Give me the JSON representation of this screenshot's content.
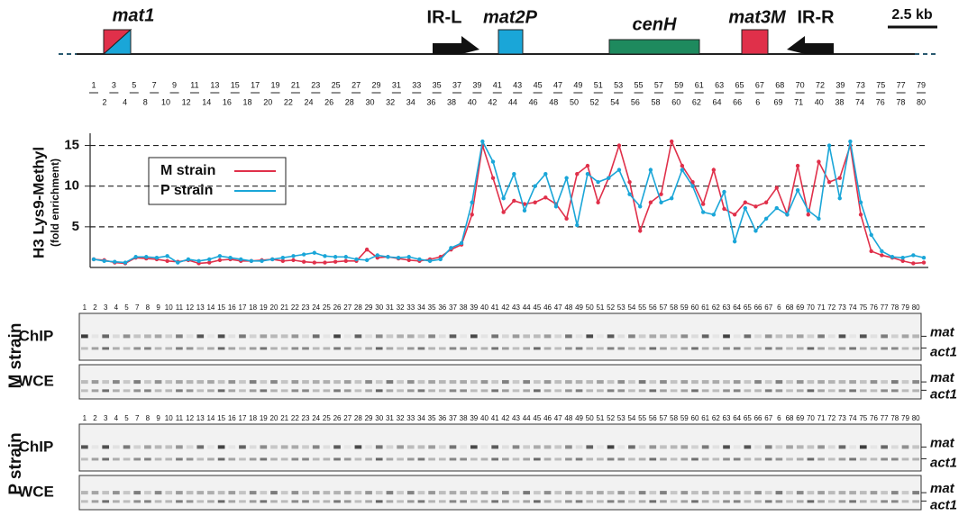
{
  "map": {
    "mat1": "mat1",
    "ir_l": "IR-L",
    "mat2p": "mat2P",
    "cenh": "cenH",
    "mat3m": "mat3M",
    "ir_r": "IR-R",
    "scale": "2.5 kb"
  },
  "primers": {
    "top": [
      1,
      3,
      5,
      7,
      9,
      11,
      13,
      15,
      17,
      19,
      21,
      23,
      25,
      27,
      29,
      31,
      33,
      35,
      37,
      39,
      41,
      43,
      45,
      47,
      49,
      51,
      53,
      55,
      57,
      59,
      61,
      63,
      65,
      67,
      68,
      70,
      72,
      39,
      73,
      75,
      77,
      79
    ],
    "bottom": [
      2,
      4,
      8,
      10,
      12,
      14,
      16,
      18,
      20,
      22,
      24,
      26,
      28,
      30,
      32,
      34,
      36,
      38,
      40,
      42,
      44,
      46,
      48,
      50,
      52,
      54,
      56,
      58,
      60,
      62,
      64,
      66,
      6,
      69,
      71,
      40,
      38,
      74,
      76,
      78,
      80
    ]
  },
  "chart_data": {
    "type": "line",
    "y_label": "H3 Lys9-Methyl",
    "y_label_sub": "(fold enrichment)",
    "ylim": [
      0,
      16.5
    ],
    "yticks": [
      5,
      10,
      15
    ],
    "grid": true,
    "series": [
      {
        "name": "M strain",
        "color": "#e0304a",
        "values": [
          1,
          0.9,
          0.6,
          0.5,
          1.2,
          1.1,
          1,
          0.8,
          0.7,
          0.9,
          0.5,
          0.6,
          0.9,
          1,
          0.8,
          0.8,
          0.9,
          1,
          0.8,
          0.9,
          0.7,
          0.6,
          0.6,
          0.7,
          0.8,
          0.8,
          2.2,
          1.2,
          1.3,
          1.1,
          0.9,
          0.8,
          1,
          1.3,
          2.2,
          2.8,
          6.5,
          15,
          11,
          6.8,
          8.2,
          7.8,
          8,
          8.6,
          7.8,
          6,
          11.5,
          12.5,
          8,
          11,
          15,
          10.5,
          4.5,
          8,
          9,
          15.5,
          12.5,
          10.5,
          7.8,
          12,
          7.2,
          6.5,
          8,
          7.5,
          8,
          9.8,
          6.5,
          12.5,
          6.5,
          13,
          10.5,
          11,
          15,
          6.5,
          2,
          1.5,
          1.2,
          0.8,
          0.5,
          0.6
        ]
      },
      {
        "name": "P strain",
        "color": "#1aa6d8",
        "values": [
          1,
          0.8,
          0.7,
          0.6,
          1.3,
          1.3,
          1.2,
          1.4,
          0.6,
          1,
          0.8,
          1,
          1.4,
          1.2,
          1,
          0.8,
          0.8,
          1,
          1.2,
          1.4,
          1.6,
          1.8,
          1.4,
          1.3,
          1.3,
          1,
          0.9,
          1.5,
          1.3,
          1.2,
          1.3,
          1,
          0.8,
          1,
          2.4,
          3,
          8,
          15.5,
          13,
          8.5,
          11.5,
          7,
          10,
          11.5,
          7.5,
          11,
          5.2,
          11.5,
          10.5,
          11,
          12,
          9,
          7.5,
          12,
          8,
          8.5,
          12,
          10,
          6.8,
          6.5,
          9.3,
          3.2,
          7.3,
          4.5,
          6,
          7.3,
          6.5,
          9.5,
          7,
          6,
          15,
          8.5,
          15.5,
          8,
          4,
          2,
          1.3,
          1.2,
          1.5,
          1.2
        ]
      }
    ]
  },
  "gels": [
    {
      "strain": "M strain",
      "panels": [
        "ChIP",
        "WCE"
      ],
      "bands": [
        "mat",
        "act1"
      ],
      "lanes": [
        1,
        2,
        3,
        4,
        5,
        7,
        8,
        9,
        10,
        11,
        12,
        13,
        14,
        15,
        16,
        17,
        18,
        19,
        20,
        21,
        22,
        23,
        24,
        25,
        26,
        27,
        28,
        29,
        30,
        31,
        32,
        33,
        34,
        35,
        36,
        37,
        38,
        39,
        40,
        41,
        42,
        43,
        44,
        45,
        46,
        47,
        48,
        49,
        50,
        51,
        52,
        53,
        54,
        55,
        56,
        57,
        58,
        59,
        60,
        61,
        62,
        63,
        64,
        65,
        66,
        67,
        6,
        68,
        69,
        70,
        71,
        72,
        73,
        74,
        75,
        76,
        77,
        78,
        79,
        80
      ]
    },
    {
      "strain": "P strain",
      "panels": [
        "ChIP",
        "WCE"
      ],
      "bands": [
        "mat",
        "act1"
      ],
      "lanes": [
        1,
        2,
        3,
        4,
        5,
        7,
        8,
        9,
        10,
        11,
        12,
        13,
        14,
        15,
        16,
        17,
        18,
        19,
        20,
        21,
        22,
        23,
        24,
        25,
        26,
        27,
        28,
        29,
        30,
        31,
        32,
        33,
        34,
        35,
        36,
        37,
        38,
        39,
        40,
        41,
        42,
        43,
        44,
        45,
        46,
        47,
        48,
        49,
        50,
        51,
        52,
        53,
        54,
        55,
        56,
        57,
        58,
        59,
        60,
        61,
        62,
        63,
        64,
        65,
        66,
        67,
        6,
        68,
        69,
        70,
        71,
        72,
        73,
        74,
        75,
        76,
        77,
        78,
        79,
        80
      ]
    }
  ]
}
